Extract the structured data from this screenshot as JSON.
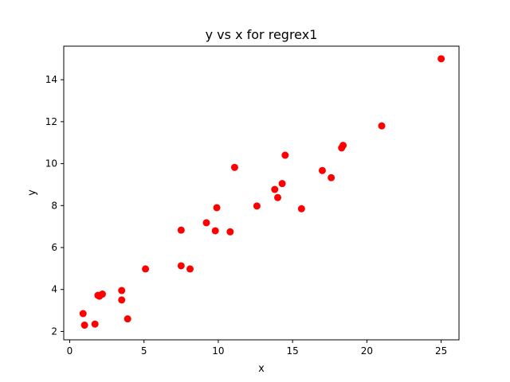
{
  "chart_data": {
    "type": "scatter",
    "title": "y vs x for regrex1",
    "xlabel": "x",
    "ylabel": "y",
    "xlim": [
      -0.4,
      26.2
    ],
    "ylim": [
      1.6,
      15.6
    ],
    "xticks": [
      0,
      5,
      10,
      15,
      20,
      25
    ],
    "yticks": [
      2,
      4,
      6,
      8,
      10,
      12,
      14
    ],
    "grid": false,
    "marker_color": "#ff0000",
    "series": [
      {
        "points": [
          [
            0.9,
            2.85
          ],
          [
            1.0,
            2.3
          ],
          [
            1.7,
            2.35
          ],
          [
            1.9,
            3.72
          ],
          [
            2.0,
            3.68
          ],
          [
            2.2,
            3.78
          ],
          [
            3.5,
            3.5
          ],
          [
            3.5,
            3.95
          ],
          [
            3.9,
            2.6
          ],
          [
            5.1,
            4.98
          ],
          [
            7.5,
            6.83
          ],
          [
            7.5,
            5.13
          ],
          [
            8.1,
            4.98
          ],
          [
            9.2,
            7.18
          ],
          [
            9.8,
            6.8
          ],
          [
            9.9,
            7.9
          ],
          [
            10.8,
            6.75
          ],
          [
            11.1,
            9.82
          ],
          [
            12.6,
            7.98
          ],
          [
            13.8,
            8.77
          ],
          [
            14.0,
            8.38
          ],
          [
            14.3,
            9.05
          ],
          [
            14.5,
            10.4
          ],
          [
            15.6,
            7.85
          ],
          [
            17.0,
            9.67
          ],
          [
            17.6,
            9.33
          ],
          [
            18.3,
            10.75
          ],
          [
            18.4,
            10.87
          ],
          [
            21.0,
            11.8
          ],
          [
            25.0,
            15.0
          ]
        ]
      }
    ]
  }
}
